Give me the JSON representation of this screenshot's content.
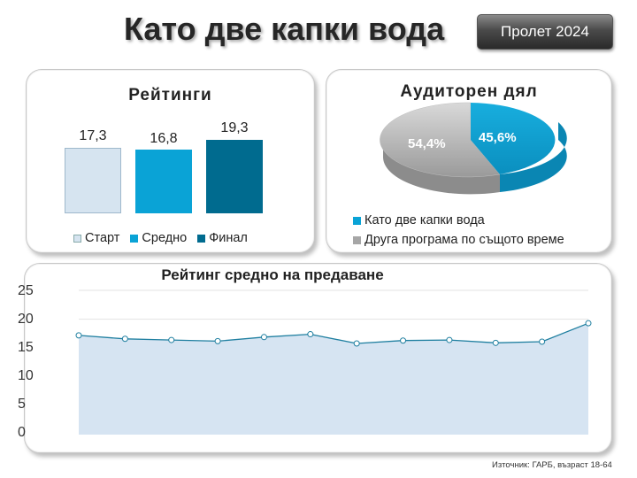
{
  "header": {
    "title": "Като две капки вода",
    "season": "Пролет 2024"
  },
  "ratings_panel": {
    "title": "Рейтинги",
    "legend": [
      "Старт",
      "Средно",
      "Финал"
    ]
  },
  "share_panel": {
    "title": "Аудиторен дял",
    "slice_labels": [
      "45,6%",
      "54,4%"
    ],
    "legend": [
      "Като две капки вода",
      "Друга програма по същото време"
    ]
  },
  "line_panel": {
    "title": "Рейтинг средно на предаване"
  },
  "footer": {
    "source": "Източник: ГАРБ, възраст 18-64"
  },
  "colors": {
    "start": "#d6e4f0",
    "average": "#0aa3d6",
    "final": "#006b8f",
    "other": "#a6a6a6",
    "line": "#1f7fa0",
    "area": "#d6e4f2"
  },
  "chart_data": [
    {
      "type": "bar",
      "title": "Рейтинги",
      "categories": [
        "Старт",
        "Средно",
        "Финал"
      ],
      "values": [
        17.3,
        16.8,
        19.3
      ],
      "value_labels": [
        "17,3",
        "16,8",
        "19,3"
      ],
      "legend_position": "bottom"
    },
    {
      "type": "pie",
      "title": "Аудиторен дял",
      "categories": [
        "Като две капки вода",
        "Друга програма по същото време"
      ],
      "values": [
        45.6,
        54.4
      ],
      "legend_position": "bottom",
      "style": "3d"
    },
    {
      "type": "area",
      "title": "Рейтинг средно на предаване",
      "x": [
        1,
        2,
        3,
        4,
        5,
        6,
        7,
        8,
        9,
        10,
        11,
        12
      ],
      "values": [
        17.2,
        16.6,
        16.4,
        16.2,
        16.9,
        17.4,
        15.8,
        16.3,
        16.4,
        15.9,
        16.1,
        19.3
      ],
      "yticks": [
        "0",
        "5",
        "10",
        "15",
        "20",
        "25"
      ],
      "ylim": [
        0,
        25
      ],
      "grid": true
    }
  ]
}
